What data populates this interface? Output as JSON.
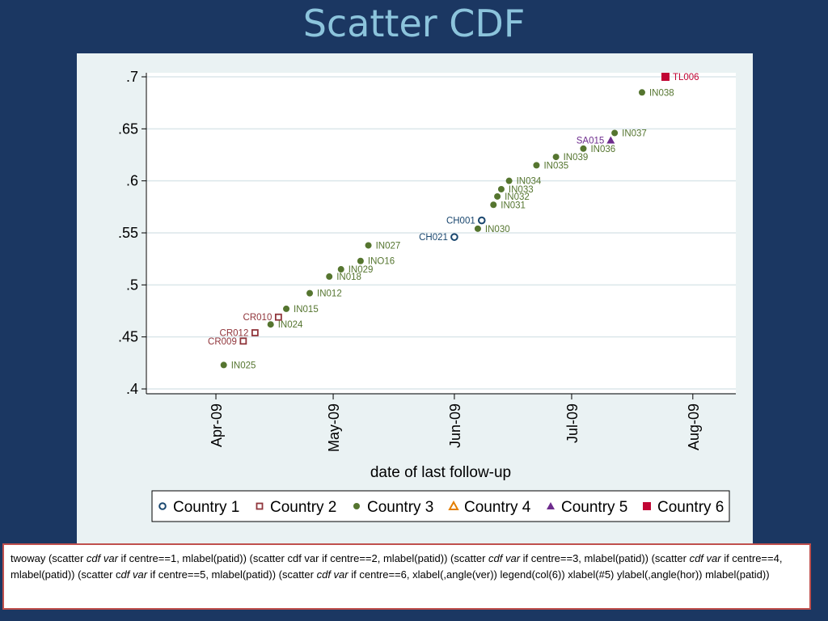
{
  "slide": {
    "title": "Scatter CDF"
  },
  "code": {
    "segments": [
      {
        "text": "twoway (scatter ",
        "italic": false
      },
      {
        "text": "cdf var",
        "italic": true
      },
      {
        "text": " if centre==1, mlabel(patid)) (scatter cdf var if centre==2, mlabel(patid)) (scatter ",
        "italic": false
      },
      {
        "text": "cdf var",
        "italic": true
      },
      {
        "text": " if centre==3, mlabel(patid)) (scatter ",
        "italic": false
      },
      {
        "text": "cdf var",
        "italic": true
      },
      {
        "text": " if centre==4, mlabel(patid)) (scatter c",
        "italic": false
      },
      {
        "text": "df var",
        "italic": true
      },
      {
        "text": " if centre==5, mlabel(patid)) (scatter ",
        "italic": false
      },
      {
        "text": "cdf var",
        "italic": true
      },
      {
        "text": " if centre==6, xlabel(,angle(ver)) legend(col(6)) xlabel(#5) ylabel(,angle(hor)) mlabel(patid))",
        "italic": false
      }
    ]
  },
  "chart_data": {
    "type": "scatter",
    "title": "",
    "xlabel": "date of last follow-up",
    "ylabel": "",
    "x_ticks": [
      "2009-04-01",
      "2009-05-01",
      "2009-06-01",
      "2009-07-01",
      "2009-08-01"
    ],
    "x_tick_labels": [
      "Apr-09",
      "May-09",
      "Jun-09",
      "Jul-09",
      "Aug-09"
    ],
    "xlim": [
      "2009-03-14",
      "2009-08-12"
    ],
    "y_ticks": [
      0.4,
      0.45,
      0.5,
      0.55,
      0.6,
      0.65,
      0.7
    ],
    "y_tick_labels": [
      ".4",
      ".45",
      ".5",
      ".55",
      ".6",
      ".65",
      ".7"
    ],
    "ylim": [
      0.4,
      0.7
    ],
    "grid": true,
    "legend_position": "bottom",
    "series": [
      {
        "name": "Country 1",
        "marker": "hollow-circle",
        "color": "#1a476f",
        "points": [
          {
            "label": "CH021",
            "x": "2009-06-01",
            "y": 0.546,
            "label_side": "left"
          },
          {
            "label": "CH001",
            "x": "2009-06-08",
            "y": 0.562,
            "label_side": "left"
          }
        ]
      },
      {
        "name": "Country 2",
        "marker": "hollow-square",
        "color": "#90353b",
        "points": [
          {
            "label": "CR009",
            "x": "2009-04-08",
            "y": 0.446,
            "label_side": "left"
          },
          {
            "label": "CR012",
            "x": "2009-04-11",
            "y": 0.454,
            "label_side": "left"
          },
          {
            "label": "CR010",
            "x": "2009-04-17",
            "y": 0.469,
            "label_side": "left"
          }
        ]
      },
      {
        "name": "Country 3",
        "marker": "circle",
        "color": "#55752f",
        "points": [
          {
            "label": "IN025",
            "x": "2009-04-03",
            "y": 0.423
          },
          {
            "label": "IN024",
            "x": "2009-04-15",
            "y": 0.462
          },
          {
            "label": "IN015",
            "x": "2009-04-19",
            "y": 0.477
          },
          {
            "label": "IN012",
            "x": "2009-04-25",
            "y": 0.492
          },
          {
            "label": "IN018",
            "x": "2009-04-30",
            "y": 0.508
          },
          {
            "label": "IN029",
            "x": "2009-05-03",
            "y": 0.515
          },
          {
            "label": "INO16",
            "x": "2009-05-08",
            "y": 0.523
          },
          {
            "label": "IN027",
            "x": "2009-05-10",
            "y": 0.538
          },
          {
            "label": "IN030",
            "x": "2009-06-07",
            "y": 0.554
          },
          {
            "label": "IN031",
            "x": "2009-06-11",
            "y": 0.577
          },
          {
            "label": "IN032",
            "x": "2009-06-12",
            "y": 0.585
          },
          {
            "label": "IN033",
            "x": "2009-06-13",
            "y": 0.592
          },
          {
            "label": "IN034",
            "x": "2009-06-15",
            "y": 0.6
          },
          {
            "label": "IN035",
            "x": "2009-06-22",
            "y": 0.615
          },
          {
            "label": "IN039",
            "x": "2009-06-27",
            "y": 0.623
          },
          {
            "label": "IN036",
            "x": "2009-07-04",
            "y": 0.631
          },
          {
            "label": "IN037",
            "x": "2009-07-12",
            "y": 0.646
          },
          {
            "label": "IN038",
            "x": "2009-07-19",
            "y": 0.685
          }
        ]
      },
      {
        "name": "Country 4",
        "marker": "hollow-triangle",
        "color": "#e37e00",
        "points": []
      },
      {
        "name": "Country 5",
        "marker": "triangle",
        "color": "#6e2c8d",
        "points": [
          {
            "label": "SA015",
            "x": "2009-07-11",
            "y": 0.639,
            "label_side": "left"
          }
        ]
      },
      {
        "name": "Country 6",
        "marker": "square",
        "color": "#c10534",
        "points": [
          {
            "label": "TL006",
            "x": "2009-07-25",
            "y": 0.7
          }
        ]
      }
    ]
  }
}
